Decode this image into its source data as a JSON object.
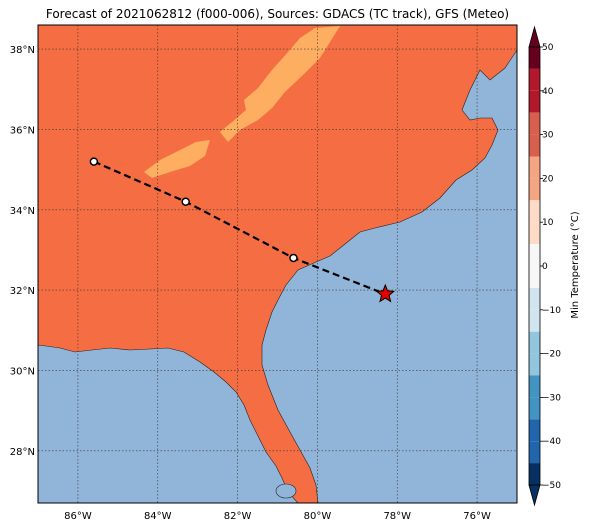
{
  "title": "Forecast of 2021062812 (f000-006), Sources: GDACS (TC track), GFS (Meteo)",
  "colorbar": {
    "label": "Min Temperature (°C)",
    "ticks": [
      "50",
      "40",
      "30",
      "20",
      "10",
      "0",
      "−10",
      "−20",
      "−30",
      "−40",
      "−50"
    ],
    "colors": [
      "#67001f",
      "#b2182b",
      "#d6604d",
      "#f4a582",
      "#fddbc7",
      "#f7f7f7",
      "#d1e5f0",
      "#92c5de",
      "#4393c3",
      "#2166ac",
      "#053061"
    ]
  },
  "axes": {
    "lon_labels": [
      "86°W",
      "84°W",
      "82°W",
      "80°W",
      "78°W",
      "76°W"
    ],
    "lat_labels": [
      "38°N",
      "36°N",
      "34°N",
      "32°N",
      "30°N",
      "28°N"
    ],
    "lon_range": [
      -87,
      -75
    ],
    "lat_range": [
      26.7,
      38.6
    ]
  },
  "colors": {
    "land": "#f46d43",
    "warm_land": "#fdae61",
    "ocean": "#91b4d9",
    "track": "#000000",
    "storm": "#e00000"
  },
  "track": {
    "points": [
      {
        "lon": -85.6,
        "lat": 35.2,
        "marker": "circle"
      },
      {
        "lon": -83.3,
        "lat": 34.2,
        "marker": "circle"
      },
      {
        "lon": -80.6,
        "lat": 32.8,
        "marker": "circle"
      },
      {
        "lon": -78.3,
        "lat": 31.9,
        "marker": "star"
      }
    ]
  }
}
